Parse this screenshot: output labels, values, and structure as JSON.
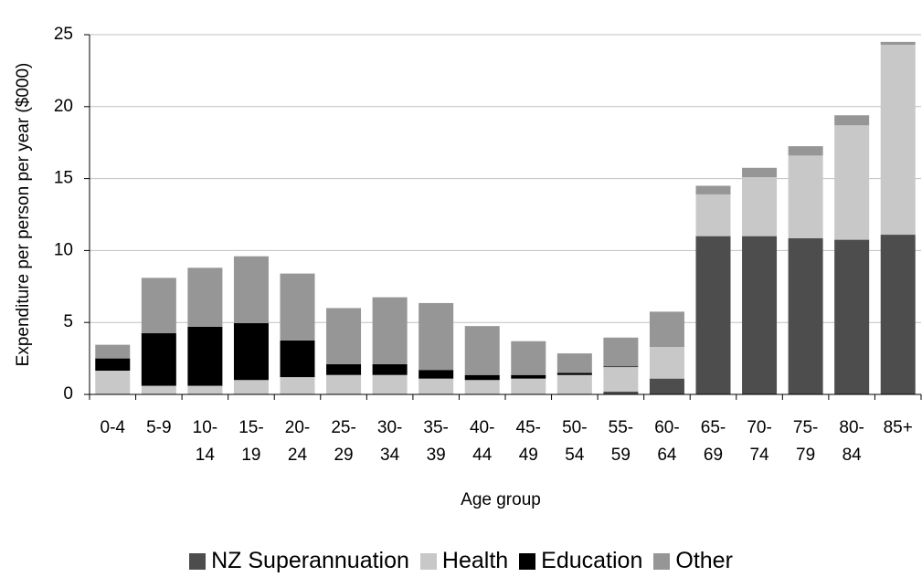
{
  "chart_data": {
    "type": "stacked_bar",
    "x_label": "Age group",
    "y_label": "Expenditure per person per year ($000)",
    "categories": [
      "0-4",
      "5-9",
      "10-14",
      "15-19",
      "20-24",
      "25-29",
      "30-34",
      "35-39",
      "40-44",
      "45-49",
      "50-54",
      "55-59",
      "60-64",
      "65-69",
      "70-74",
      "75-79",
      "80-84",
      "85+"
    ],
    "series": [
      {
        "name": "NZ Superannuation",
        "color": "#4d4d4d",
        "values": [
          0,
          0,
          0,
          0,
          0,
          0,
          0,
          0,
          0,
          0,
          0,
          0.2,
          1.1,
          11.0,
          11.0,
          10.85,
          10.75,
          11.1
        ]
      },
      {
        "name": "Health",
        "color": "#c8c8c8",
        "values": [
          1.65,
          0.6,
          0.6,
          1.0,
          1.2,
          1.35,
          1.35,
          1.1,
          1.0,
          1.1,
          1.35,
          1.7,
          2.2,
          2.9,
          4.1,
          5.75,
          7.95,
          13.2
        ]
      },
      {
        "name": "Education",
        "color": "#000000",
        "values": [
          0.85,
          3.65,
          4.1,
          3.95,
          2.55,
          0.75,
          0.75,
          0.6,
          0.35,
          0.25,
          0.15,
          0.05,
          0,
          0,
          0,
          0,
          0,
          0
        ]
      },
      {
        "name": "Other",
        "color": "#969696",
        "values": [
          0.95,
          3.85,
          4.1,
          4.65,
          4.65,
          3.9,
          4.65,
          4.65,
          3.4,
          2.35,
          1.35,
          2.0,
          2.45,
          0.6,
          0.65,
          0.65,
          0.7,
          0.2
        ]
      }
    ],
    "ylim": [
      0,
      25
    ],
    "yticks": [
      0,
      5,
      10,
      15,
      20,
      25
    ],
    "grid": true,
    "legend": "bottom"
  }
}
